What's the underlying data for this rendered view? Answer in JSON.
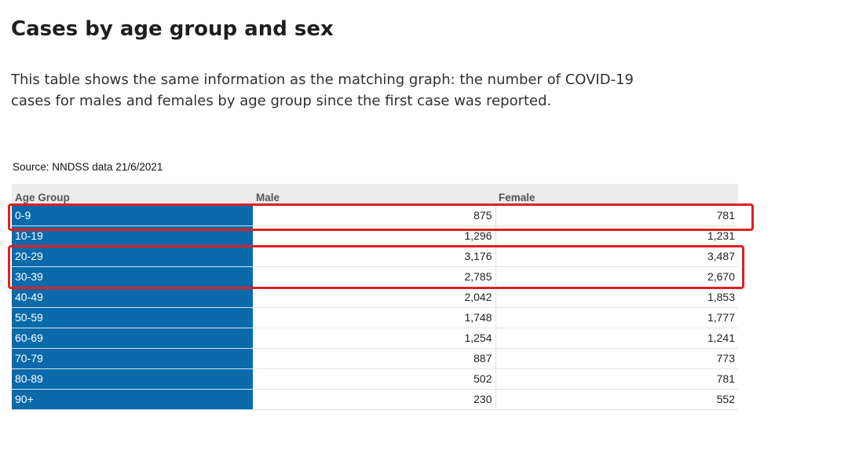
{
  "page": {
    "title": "Cases by age group and sex",
    "intro": "This table shows the same information as the matching graph: the number of COVID-19 cases for males and females by age group since the first case was reported.",
    "source": "Source: NNDSS data 21/6/2021"
  },
  "table": {
    "headers": [
      "Age Group",
      "Male",
      "Female"
    ],
    "rows": [
      {
        "age": "0-9",
        "male": "875",
        "female": "781"
      },
      {
        "age": "10-19",
        "male": "1,296",
        "female": "1,231"
      },
      {
        "age": "20-29",
        "male": "3,176",
        "female": "3,487"
      },
      {
        "age": "30-39",
        "male": "2,785",
        "female": "2,670"
      },
      {
        "age": "40-49",
        "male": "2,042",
        "female": "1,853"
      },
      {
        "age": "50-59",
        "male": "1,748",
        "female": "1,777"
      },
      {
        "age": "60-69",
        "male": "1,254",
        "female": "1,241"
      },
      {
        "age": "70-79",
        "male": "887",
        "female": "773"
      },
      {
        "age": "80-89",
        "male": "502",
        "female": "781"
      },
      {
        "age": "90+",
        "male": "230",
        "female": "552"
      }
    ]
  },
  "annotations": {
    "highlight_color": "#e02020",
    "highlighted_rows": [
      "0-9",
      "20-29",
      "30-39"
    ]
  },
  "colors": {
    "age_cell_bg": "#0a6aaa",
    "header_bg": "#ececec"
  }
}
